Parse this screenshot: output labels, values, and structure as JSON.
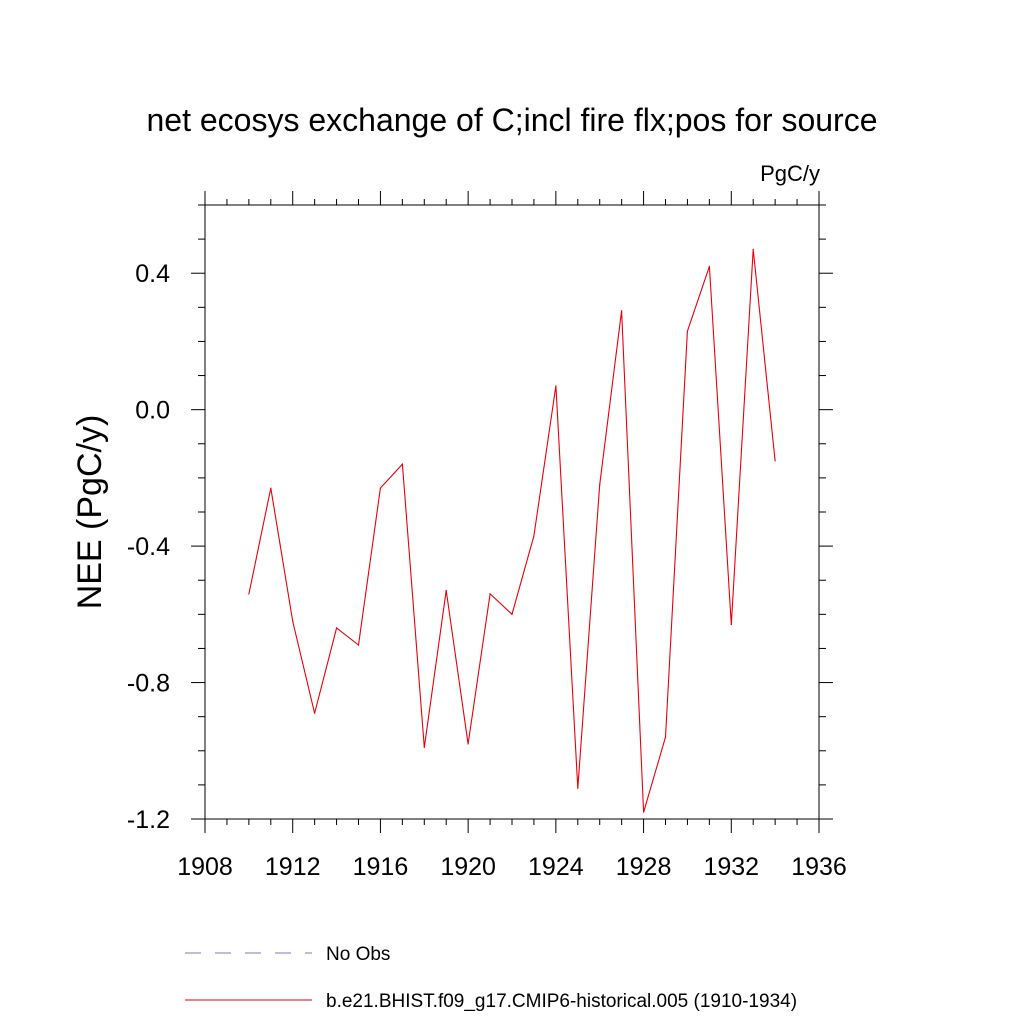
{
  "chart_data": {
    "type": "line",
    "title": "net ecosys exchange of C;incl fire flx;pos for source",
    "units_label": "PgC/y",
    "ylabel": "NEE  (PgC/y)",
    "xlabel": "",
    "xlim": [
      1908,
      1936
    ],
    "ylim": [
      -1.2,
      0.6
    ],
    "xticks": [
      1908,
      1912,
      1916,
      1920,
      1924,
      1928,
      1932,
      1936
    ],
    "xtick_labels": [
      "1908",
      "1912",
      "1916",
      "1920",
      "1924",
      "1928",
      "1932",
      "1936"
    ],
    "yticks": [
      -1.2,
      -0.8,
      -0.4,
      0.0,
      0.4
    ],
    "ytick_labels": [
      "-1.2",
      "-0.8",
      "-0.4",
      "0.0",
      "0.4"
    ],
    "grid": false,
    "series": [
      {
        "name": "b.e21.BHIST.f09_g17.CMIP6-historical.005 (1910-1934)",
        "color": "#e8000b",
        "style": "solid",
        "x": [
          1910,
          1911,
          1912,
          1913,
          1914,
          1915,
          1916,
          1917,
          1918,
          1919,
          1920,
          1921,
          1922,
          1923,
          1924,
          1925,
          1926,
          1927,
          1928,
          1929,
          1930,
          1931,
          1932,
          1933,
          1934
        ],
        "values": [
          -0.54,
          -0.23,
          -0.62,
          -0.89,
          -0.64,
          -0.69,
          -0.23,
          -0.16,
          -0.99,
          -0.53,
          -0.98,
          -0.54,
          -0.6,
          -0.37,
          0.07,
          -1.11,
          -0.22,
          0.29,
          -1.18,
          -0.96,
          0.23,
          0.42,
          -0.63,
          0.47,
          -0.15
        ]
      }
    ],
    "legend": [
      {
        "label": "No Obs",
        "color": "#7a7ac0",
        "style": "dashed"
      },
      {
        "label": "b.e21.BHIST.f09_g17.CMIP6-historical.005 (1910-1934)",
        "color": "#e8000b",
        "style": "solid"
      }
    ]
  }
}
